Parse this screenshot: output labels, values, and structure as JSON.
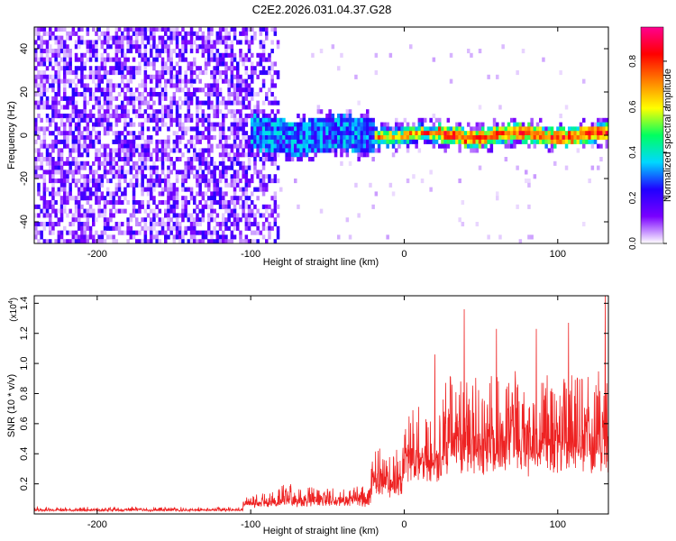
{
  "figure_title": "C2E2.2026.031.04.37.G28",
  "chart_data": [
    {
      "type": "heatmap",
      "title": "C2E2.2026.031.04.37.G28",
      "xlabel": "Height of straight line (km)",
      "ylabel": "Frequency (Hz)",
      "xlim": [
        -241,
        133
      ],
      "ylim": [
        -50,
        50
      ],
      "x_ticks": [
        -200,
        -100,
        0,
        100
      ],
      "x_tick_labels": [
        "-200",
        "-100",
        "0",
        "100"
      ],
      "y_ticks": [
        -40,
        -20,
        0,
        20,
        40
      ],
      "y_tick_labels": [
        "-40",
        "-20",
        "0",
        "20",
        "40"
      ],
      "colorbar": {
        "label": "Normalized spectral amplitude",
        "range": [
          0,
          0.95
        ],
        "ticks": [
          0.0,
          0.2,
          0.4,
          0.6,
          0.8
        ],
        "tick_labels": [
          "0.0",
          "0.2",
          "0.4",
          "0.6",
          "0.8"
        ],
        "colors": [
          "#ffffff",
          "#7a00ff",
          "#2000ff",
          "#00d8ff",
          "#00ff60",
          "#ffff00",
          "#ff8000",
          "#ff0000",
          "#ff0090"
        ]
      },
      "description_values": {
        "noise_region_end_km": -82,
        "signal_start_km": -100,
        "strong_signal_start_km": -20,
        "signal_center_hz": 0,
        "signal_band_halfwidth_hz": 4
      }
    },
    {
      "type": "line",
      "xlabel": "Height of straight line (km)",
      "ylabel": "SNR (10 * v/v)",
      "exponent_label": "(x10",
      "exponent_power": "4",
      "exponent_close": ")",
      "xlim": [
        -241,
        133
      ],
      "ylim": [
        0,
        1.45
      ],
      "x_ticks": [
        -200,
        -100,
        0,
        100
      ],
      "x_tick_labels": [
        "-200",
        "-100",
        "0",
        "100"
      ],
      "y_ticks": [
        0.2,
        0.4,
        0.6,
        0.8,
        1.0,
        1.2,
        1.4
      ],
      "y_tick_labels": [
        "0.2",
        "0.4",
        "0.6",
        "0.8",
        "1.0",
        "1.2",
        "1.4"
      ],
      "color": "#ee2222",
      "segments": [
        {
          "from": -241,
          "to": -105,
          "base": 0.02,
          "amp": 0.025
        },
        {
          "from": -105,
          "to": -82,
          "base": 0.05,
          "amp": 0.09
        },
        {
          "from": -82,
          "to": -22,
          "base": 0.06,
          "amp": 0.13
        },
        {
          "from": -22,
          "to": 0,
          "base": 0.14,
          "amp": 0.28
        },
        {
          "from": 0,
          "to": 25,
          "base": 0.25,
          "amp": 0.45
        },
        {
          "from": 25,
          "to": 133,
          "base": 0.32,
          "amp": 0.6
        }
      ],
      "peaks": [
        {
          "x": 39,
          "y": 1.36
        },
        {
          "x": 131,
          "y": 1.46
        },
        {
          "x": 107,
          "y": 1.27
        },
        {
          "x": 86,
          "y": 1.23
        },
        {
          "x": 60,
          "y": 1.23
        },
        {
          "x": 20,
          "y": 1.06
        }
      ]
    }
  ]
}
